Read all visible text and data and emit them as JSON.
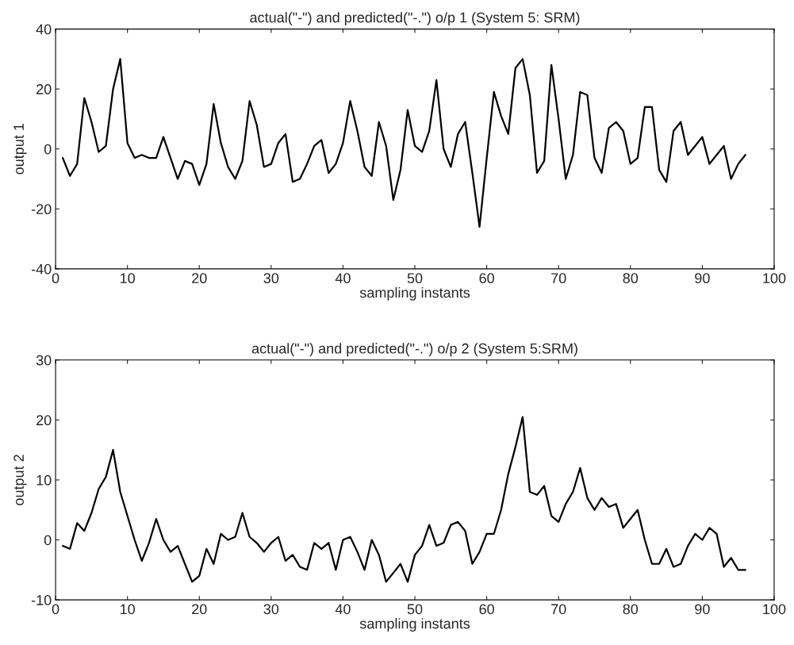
{
  "chart_data": [
    {
      "type": "line",
      "title": "actual(\"-\") and predicted(\"-.\") o/p 1 (System 5: SRM)",
      "xlabel": "sampling instants",
      "ylabel": "output 1",
      "x": [
        1,
        2,
        3,
        4,
        5,
        6,
        7,
        8,
        9,
        10,
        11,
        12,
        13,
        14,
        15,
        16,
        17,
        18,
        19,
        20,
        21,
        22,
        23,
        24,
        25,
        26,
        27,
        28,
        29,
        30,
        31,
        32,
        33,
        34,
        35,
        36,
        37,
        38,
        39,
        40,
        41,
        42,
        43,
        44,
        45,
        46,
        47,
        48,
        49,
        50,
        51,
        52,
        53,
        54,
        55,
        56,
        57,
        58,
        59,
        60,
        61,
        62,
        63,
        64,
        65,
        66,
        67,
        68,
        69,
        70,
        71,
        72,
        73,
        74,
        75,
        76,
        77,
        78,
        79,
        80,
        81,
        82,
        83,
        84,
        85,
        86,
        87,
        88,
        89,
        90,
        91,
        92,
        93,
        94,
        95,
        96
      ],
      "series": [
        {
          "color": "#000000",
          "values": [
            -3,
            -9,
            -5,
            17,
            9,
            -1,
            1,
            20,
            30,
            2,
            -3,
            -2,
            -3,
            -3,
            4,
            -3,
            -10,
            -4,
            -5,
            -12,
            -5,
            15,
            2,
            -6,
            -10,
            -4,
            16,
            8,
            -6,
            -5,
            2,
            5,
            -11,
            -10,
            -5,
            1,
            3,
            -8,
            -5,
            2,
            16,
            6,
            -6,
            -9,
            9,
            1,
            -17,
            -7,
            13,
            1,
            -1,
            6,
            23,
            0,
            -6,
            5,
            9,
            -8,
            -26,
            -3,
            19,
            11,
            5,
            27,
            30,
            18,
            -8,
            -4,
            28,
            10,
            -10,
            -2,
            19,
            18,
            -3,
            -8,
            7,
            9,
            6,
            -5,
            -3,
            14,
            14,
            -7,
            -11,
            6,
            9,
            -2,
            1,
            4,
            -5,
            -2,
            1,
            -10,
            -5,
            -2
          ]
        }
      ],
      "xlim": [
        0,
        100
      ],
      "xticks": [
        0,
        10,
        20,
        30,
        40,
        50,
        60,
        70,
        80,
        90,
        100
      ],
      "ylim": [
        -40,
        40
      ],
      "yticks": [
        -40,
        -20,
        0,
        20,
        40
      ],
      "grid": false,
      "line_style": "solid",
      "marker": "none"
    },
    {
      "type": "line",
      "title": "actual(\"-\") and predicted(\"-.\") o/p 2 (System 5:SRM)",
      "xlabel": "sampling instants",
      "ylabel": "output 2",
      "x": [
        1,
        2,
        3,
        4,
        5,
        6,
        7,
        8,
        9,
        10,
        11,
        12,
        13,
        14,
        15,
        16,
        17,
        18,
        19,
        20,
        21,
        22,
        23,
        24,
        25,
        26,
        27,
        28,
        29,
        30,
        31,
        32,
        33,
        34,
        35,
        36,
        37,
        38,
        39,
        40,
        41,
        42,
        43,
        44,
        45,
        46,
        47,
        48,
        49,
        50,
        51,
        52,
        53,
        54,
        55,
        56,
        57,
        58,
        59,
        60,
        61,
        62,
        63,
        64,
        65,
        66,
        67,
        68,
        69,
        70,
        71,
        72,
        73,
        74,
        75,
        76,
        77,
        78,
        79,
        80,
        81,
        82,
        83,
        84,
        85,
        86,
        87,
        88,
        89,
        90,
        91,
        92,
        93,
        94,
        95,
        96
      ],
      "series": [
        {
          "color": "#000000",
          "values": [
            -1,
            -1.5,
            2.8,
            1.5,
            4.5,
            8.5,
            10.5,
            15,
            8,
            4,
            0,
            -3.5,
            -0.5,
            3.5,
            0,
            -2,
            -1,
            -4,
            -7,
            -6,
            -1.5,
            -4,
            1,
            0,
            0.5,
            4.5,
            0.5,
            -0.5,
            -2,
            -0.5,
            0.5,
            -3.5,
            -2.5,
            -4.5,
            -5,
            -0.5,
            -1.5,
            -0.5,
            -5,
            0,
            0.5,
            -2,
            -5,
            0,
            -2.5,
            -7,
            -5.5,
            -4,
            -7,
            -2.5,
            -1,
            2.5,
            -1,
            -0.5,
            2.5,
            3,
            1.5,
            -4,
            -2,
            1,
            1,
            5,
            11,
            15.5,
            20.5,
            8,
            7.5,
            9,
            4,
            3,
            6,
            8,
            12,
            7,
            5,
            7,
            5.5,
            6,
            2,
            3.5,
            5,
            0,
            -4,
            -4,
            -1.5,
            -4.5,
            -4,
            -1,
            1,
            0,
            2,
            1,
            -4.5,
            -3,
            -5,
            -5
          ]
        }
      ],
      "xlim": [
        0,
        100
      ],
      "xticks": [
        0,
        10,
        20,
        30,
        40,
        50,
        60,
        70,
        80,
        90,
        100
      ],
      "ylim": [
        -10,
        30
      ],
      "yticks": [
        -10,
        0,
        10,
        20,
        30
      ],
      "grid": false,
      "line_style": "solid",
      "marker": "none"
    }
  ]
}
